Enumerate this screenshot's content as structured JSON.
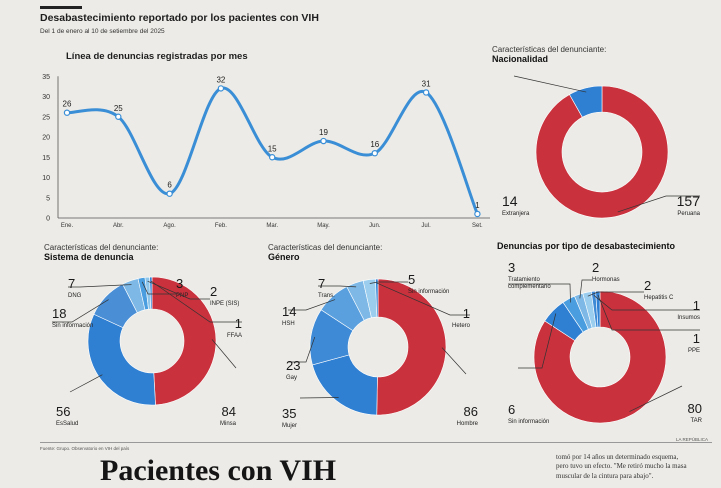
{
  "header": {
    "title": "Desabastecimiento reportado por los pacientes con VIH",
    "subtitle": "Del 1 de enero al 10 de setiembre del 2025"
  },
  "footer": {
    "source": "Fuente: Grupo. Observatorio en VIH del país",
    "brand": "LA REPÚBLICA"
  },
  "article": {
    "headline": "Pacientes con VIH",
    "lines": [
      "tomó por 14 años un determinado esquema,",
      "pero tuvo un efecto. \"Me retiró mucho la masa",
      "muscular de la cintura para abajo\"."
    ]
  },
  "colors": {
    "red": "#c9313d",
    "blue": "#2f7fd2",
    "lightblue": "#7db8e6",
    "line": "#3a8ed6"
  },
  "chart_data": [
    {
      "type": "line",
      "title": "Línea de denuncias registradas por mes",
      "categories": [
        "Ene.",
        "Abr.",
        "Ago.",
        "Feb.",
        "Mar.",
        "May.",
        "Jun.",
        "Jul.",
        "Set."
      ],
      "values": [
        26,
        25,
        6,
        32,
        15,
        19,
        16,
        31,
        1
      ],
      "ylim": [
        0,
        35
      ],
      "yticks": [
        0,
        5,
        10,
        15,
        20,
        25,
        30,
        35
      ],
      "grid": false
    },
    {
      "type": "pie",
      "caption": "Características del denunciante:",
      "title": "Nacionalidad",
      "slices": [
        {
          "label": "Peruana",
          "value": 157,
          "color": "#c9313d"
        },
        {
          "label": "Extranjera",
          "value": 14,
          "color": "#2f7fd2"
        }
      ]
    },
    {
      "type": "pie",
      "caption": "Características del denunciante:",
      "title": "Sistema de denuncia",
      "slices": [
        {
          "label": "Minsa",
          "value": 84,
          "color": "#c9313d"
        },
        {
          "label": "EsSalud",
          "value": 56,
          "color": "#2f7fd2"
        },
        {
          "label": "Sin información",
          "value": 18,
          "color": "#4a8fd6"
        },
        {
          "label": "DNG",
          "value": 7,
          "color": "#7db8e6"
        },
        {
          "label": "PNP",
          "value": 3,
          "color": "#4a9ee0"
        },
        {
          "label": "INPE (SIS)",
          "value": 2,
          "color": "#8cc4ea"
        },
        {
          "label": "FFAA",
          "value": 1,
          "color": "#2f7fd2"
        }
      ]
    },
    {
      "type": "pie",
      "caption": "Características del denunciante:",
      "title": "Género",
      "slices": [
        {
          "label": "Hombre",
          "value": 86,
          "color": "#c9313d"
        },
        {
          "label": "Mujer",
          "value": 35,
          "color": "#2f7fd2"
        },
        {
          "label": "Gay",
          "value": 23,
          "color": "#3f8ad6"
        },
        {
          "label": "HSH",
          "value": 14,
          "color": "#5aa0df"
        },
        {
          "label": "Trans.",
          "value": 7,
          "color": "#7db8e6"
        },
        {
          "label": "Sin información",
          "value": 5,
          "color": "#9acdee"
        },
        {
          "label": "Hetero",
          "value": 1,
          "color": "#2f7fd2"
        }
      ]
    },
    {
      "type": "pie",
      "title": "Denuncias por tipo de desabastecimiento",
      "slices": [
        {
          "label": "TAR",
          "value": 80,
          "color": "#c9313d"
        },
        {
          "label": "Sin información",
          "value": 6,
          "color": "#2f7fd2"
        },
        {
          "label": "Tratamiento complementario",
          "value": 3,
          "color": "#4a9ee0"
        },
        {
          "label": "Hormonas",
          "value": 2,
          "color": "#7db8e6"
        },
        {
          "label": "Hepatitis C",
          "value": 2,
          "color": "#9acdee"
        },
        {
          "label": "Insumos",
          "value": 1,
          "color": "#3f8ad6"
        },
        {
          "label": "PPE",
          "value": 1,
          "color": "#2f7fd2"
        }
      ]
    }
  ]
}
